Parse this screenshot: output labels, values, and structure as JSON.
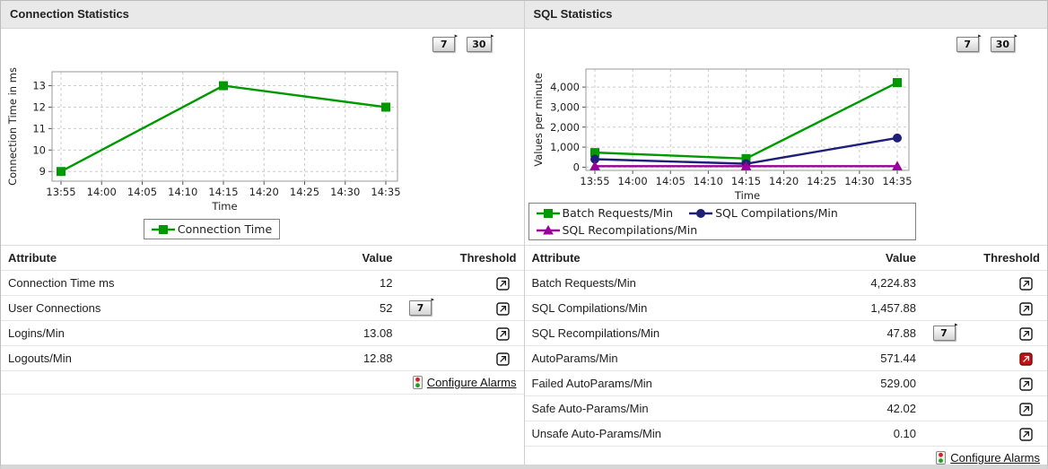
{
  "colors": {
    "green": "#009900",
    "navy": "#1f1f7a",
    "purple": "#990099",
    "alarm_red": "#c11414",
    "header_bg": "#e9e9e9"
  },
  "chart_data": [
    {
      "type": "line",
      "title": "Connection Statistics",
      "xlabel": "Time",
      "ylabel": "Connection Time in ms",
      "categories": [
        "13:55",
        "14:00",
        "14:05",
        "14:10",
        "14:15",
        "14:20",
        "14:25",
        "14:30",
        "14:35"
      ],
      "y_ticks": [
        9,
        10,
        11,
        12,
        13
      ],
      "y_tick_labels": [
        "9",
        "10",
        "11",
        "12",
        "13"
      ],
      "ylim": [
        8.55,
        13.65
      ],
      "grid": true,
      "legend_position": "bottom",
      "series": [
        {
          "name": "Connection Time",
          "color": "#009900",
          "marker": "square",
          "x": [
            "13:55",
            "14:15",
            "14:35"
          ],
          "y": [
            9,
            13,
            12
          ]
        }
      ]
    },
    {
      "type": "line",
      "title": "SQL Statistics",
      "xlabel": "Time",
      "ylabel": "Values per minute",
      "categories": [
        "13:55",
        "14:00",
        "14:05",
        "14:10",
        "14:15",
        "14:20",
        "14:25",
        "14:30",
        "14:35"
      ],
      "y_ticks": [
        0,
        1000,
        2000,
        3000,
        4000
      ],
      "y_tick_labels": [
        "0",
        "1,000",
        "2,000",
        "3,000",
        "4,000"
      ],
      "ylim": [
        -160,
        4900
      ],
      "grid": true,
      "legend_position": "bottom",
      "series": [
        {
          "name": "Batch Requests/Min",
          "color": "#009900",
          "marker": "square",
          "x": [
            "13:55",
            "14:15",
            "14:35"
          ],
          "y": [
            730,
            430,
            4225
          ]
        },
        {
          "name": "SQL Compilations/Min",
          "color": "#1f1f7a",
          "marker": "circle",
          "x": [
            "13:55",
            "14:15",
            "14:35"
          ],
          "y": [
            400,
            170,
            1458
          ]
        },
        {
          "name": "SQL Recompilations/Min",
          "color": "#990099",
          "marker": "triangle",
          "x": [
            "13:55",
            "14:15",
            "14:35"
          ],
          "y": [
            48,
            48,
            48
          ]
        }
      ]
    }
  ],
  "panels": [
    {
      "title": "Connection Statistics",
      "period_buttons": [
        "7",
        "30"
      ],
      "table": {
        "headers": [
          "Attribute",
          "Value",
          "Threshold"
        ],
        "rows": [
          {
            "attribute": "Connection Time ms",
            "value": "12",
            "period_button": "",
            "threshold": "normal"
          },
          {
            "attribute": "User Connections",
            "value": "52",
            "period_button": "7",
            "threshold": "normal"
          },
          {
            "attribute": "Logins/Min",
            "value": "13.08",
            "period_button": "",
            "threshold": "normal"
          },
          {
            "attribute": "Logouts/Min",
            "value": "12.88",
            "period_button": "",
            "threshold": "normal"
          }
        ],
        "footer_link": "Configure Alarms"
      }
    },
    {
      "title": "SQL Statistics",
      "period_buttons": [
        "7",
        "30"
      ],
      "table": {
        "headers": [
          "Attribute",
          "Value",
          "Threshold"
        ],
        "rows": [
          {
            "attribute": "Batch Requests/Min",
            "value": "4,224.83",
            "period_button": "",
            "threshold": "normal"
          },
          {
            "attribute": "SQL Compilations/Min",
            "value": "1,457.88",
            "period_button": "",
            "threshold": "normal"
          },
          {
            "attribute": "SQL Recompilations/Min",
            "value": "47.88",
            "period_button": "7",
            "threshold": "normal"
          },
          {
            "attribute": "AutoParams/Min",
            "value": "571.44",
            "period_button": "",
            "threshold": "alarm"
          },
          {
            "attribute": "Failed AutoParams/Min",
            "value": "529.00",
            "period_button": "",
            "threshold": "normal"
          },
          {
            "attribute": "Safe Auto-Params/Min",
            "value": "42.02",
            "period_button": "",
            "threshold": "normal"
          },
          {
            "attribute": "Unsafe Auto-Params/Min",
            "value": "0.10",
            "period_button": "",
            "threshold": "normal"
          }
        ],
        "footer_link": "Configure Alarms"
      }
    }
  ]
}
